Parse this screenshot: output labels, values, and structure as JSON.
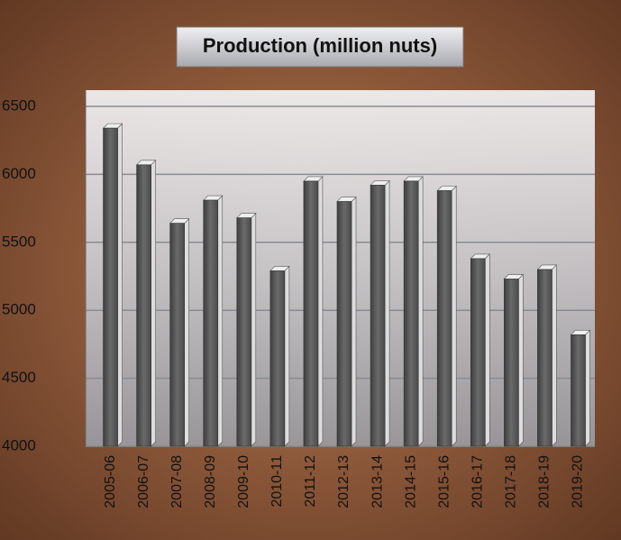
{
  "chart_data": {
    "type": "bar",
    "title": "Production (million nuts)",
    "categories": [
      "2005-06",
      "2006-07",
      "2007-08",
      "2008-09",
      "2009-10",
      "2010-11",
      "2011-12",
      "2012-13",
      "2013-14",
      "2014-15",
      "2015-16",
      "2016-17",
      "2017-18",
      "2018-19",
      "2019-20"
    ],
    "values": [
      6340,
      6070,
      5640,
      5810,
      5680,
      5290,
      5950,
      5800,
      5920,
      5950,
      5880,
      5380,
      5230,
      5300,
      4820
    ],
    "color": "#5a5a5a",
    "ylim": [
      4000,
      6500
    ],
    "yticks": [
      4000,
      4500,
      5000,
      5500,
      6000,
      6500
    ],
    "grid": true
  }
}
